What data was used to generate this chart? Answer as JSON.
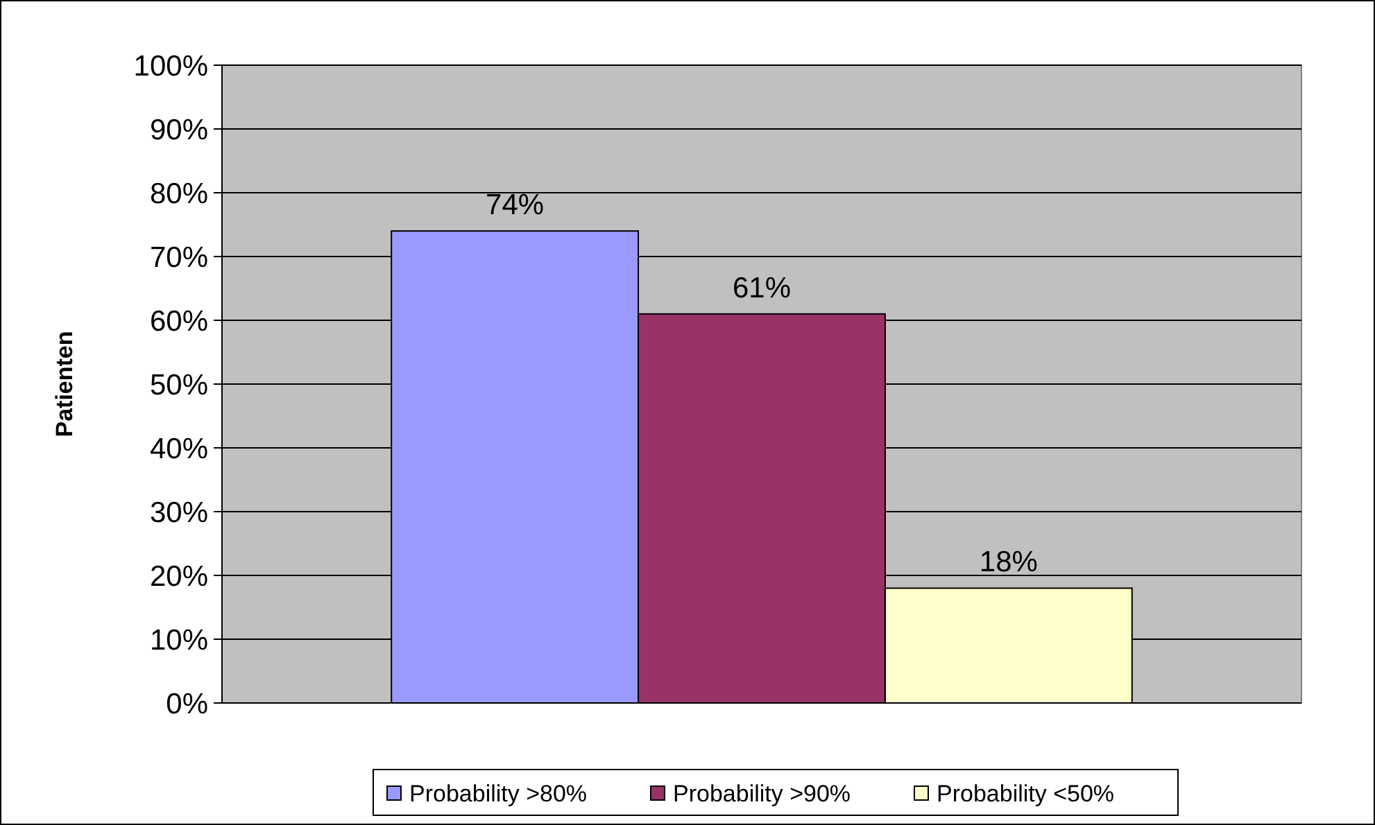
{
  "chart_data": {
    "type": "bar",
    "ylabel": "Patienten",
    "categories": [
      null
    ],
    "series": [
      {
        "name": "Probability >80%",
        "color": "#9999ff",
        "values": [
          74
        ],
        "value_labels": [
          "74%"
        ]
      },
      {
        "name": "Probability >90%",
        "color": "#993366",
        "values": [
          61
        ],
        "value_labels": [
          "61%"
        ]
      },
      {
        "name": "Probability <50%",
        "color": "#ffffcc",
        "values": [
          18
        ],
        "value_labels": [
          "18%"
        ]
      }
    ],
    "ylim": [
      0,
      100
    ],
    "yticks": [
      {
        "value": 0,
        "label": "0%"
      },
      {
        "value": 10,
        "label": "10%"
      },
      {
        "value": 20,
        "label": "20%"
      },
      {
        "value": 30,
        "label": "30%"
      },
      {
        "value": 40,
        "label": "40%"
      },
      {
        "value": 50,
        "label": "50%"
      },
      {
        "value": 60,
        "label": "60%"
      },
      {
        "value": 70,
        "label": "70%"
      },
      {
        "value": 80,
        "label": "80%"
      },
      {
        "value": 90,
        "label": "90%"
      },
      {
        "value": 100,
        "label": "100%"
      }
    ],
    "grid": "y",
    "legend": "bottom"
  }
}
